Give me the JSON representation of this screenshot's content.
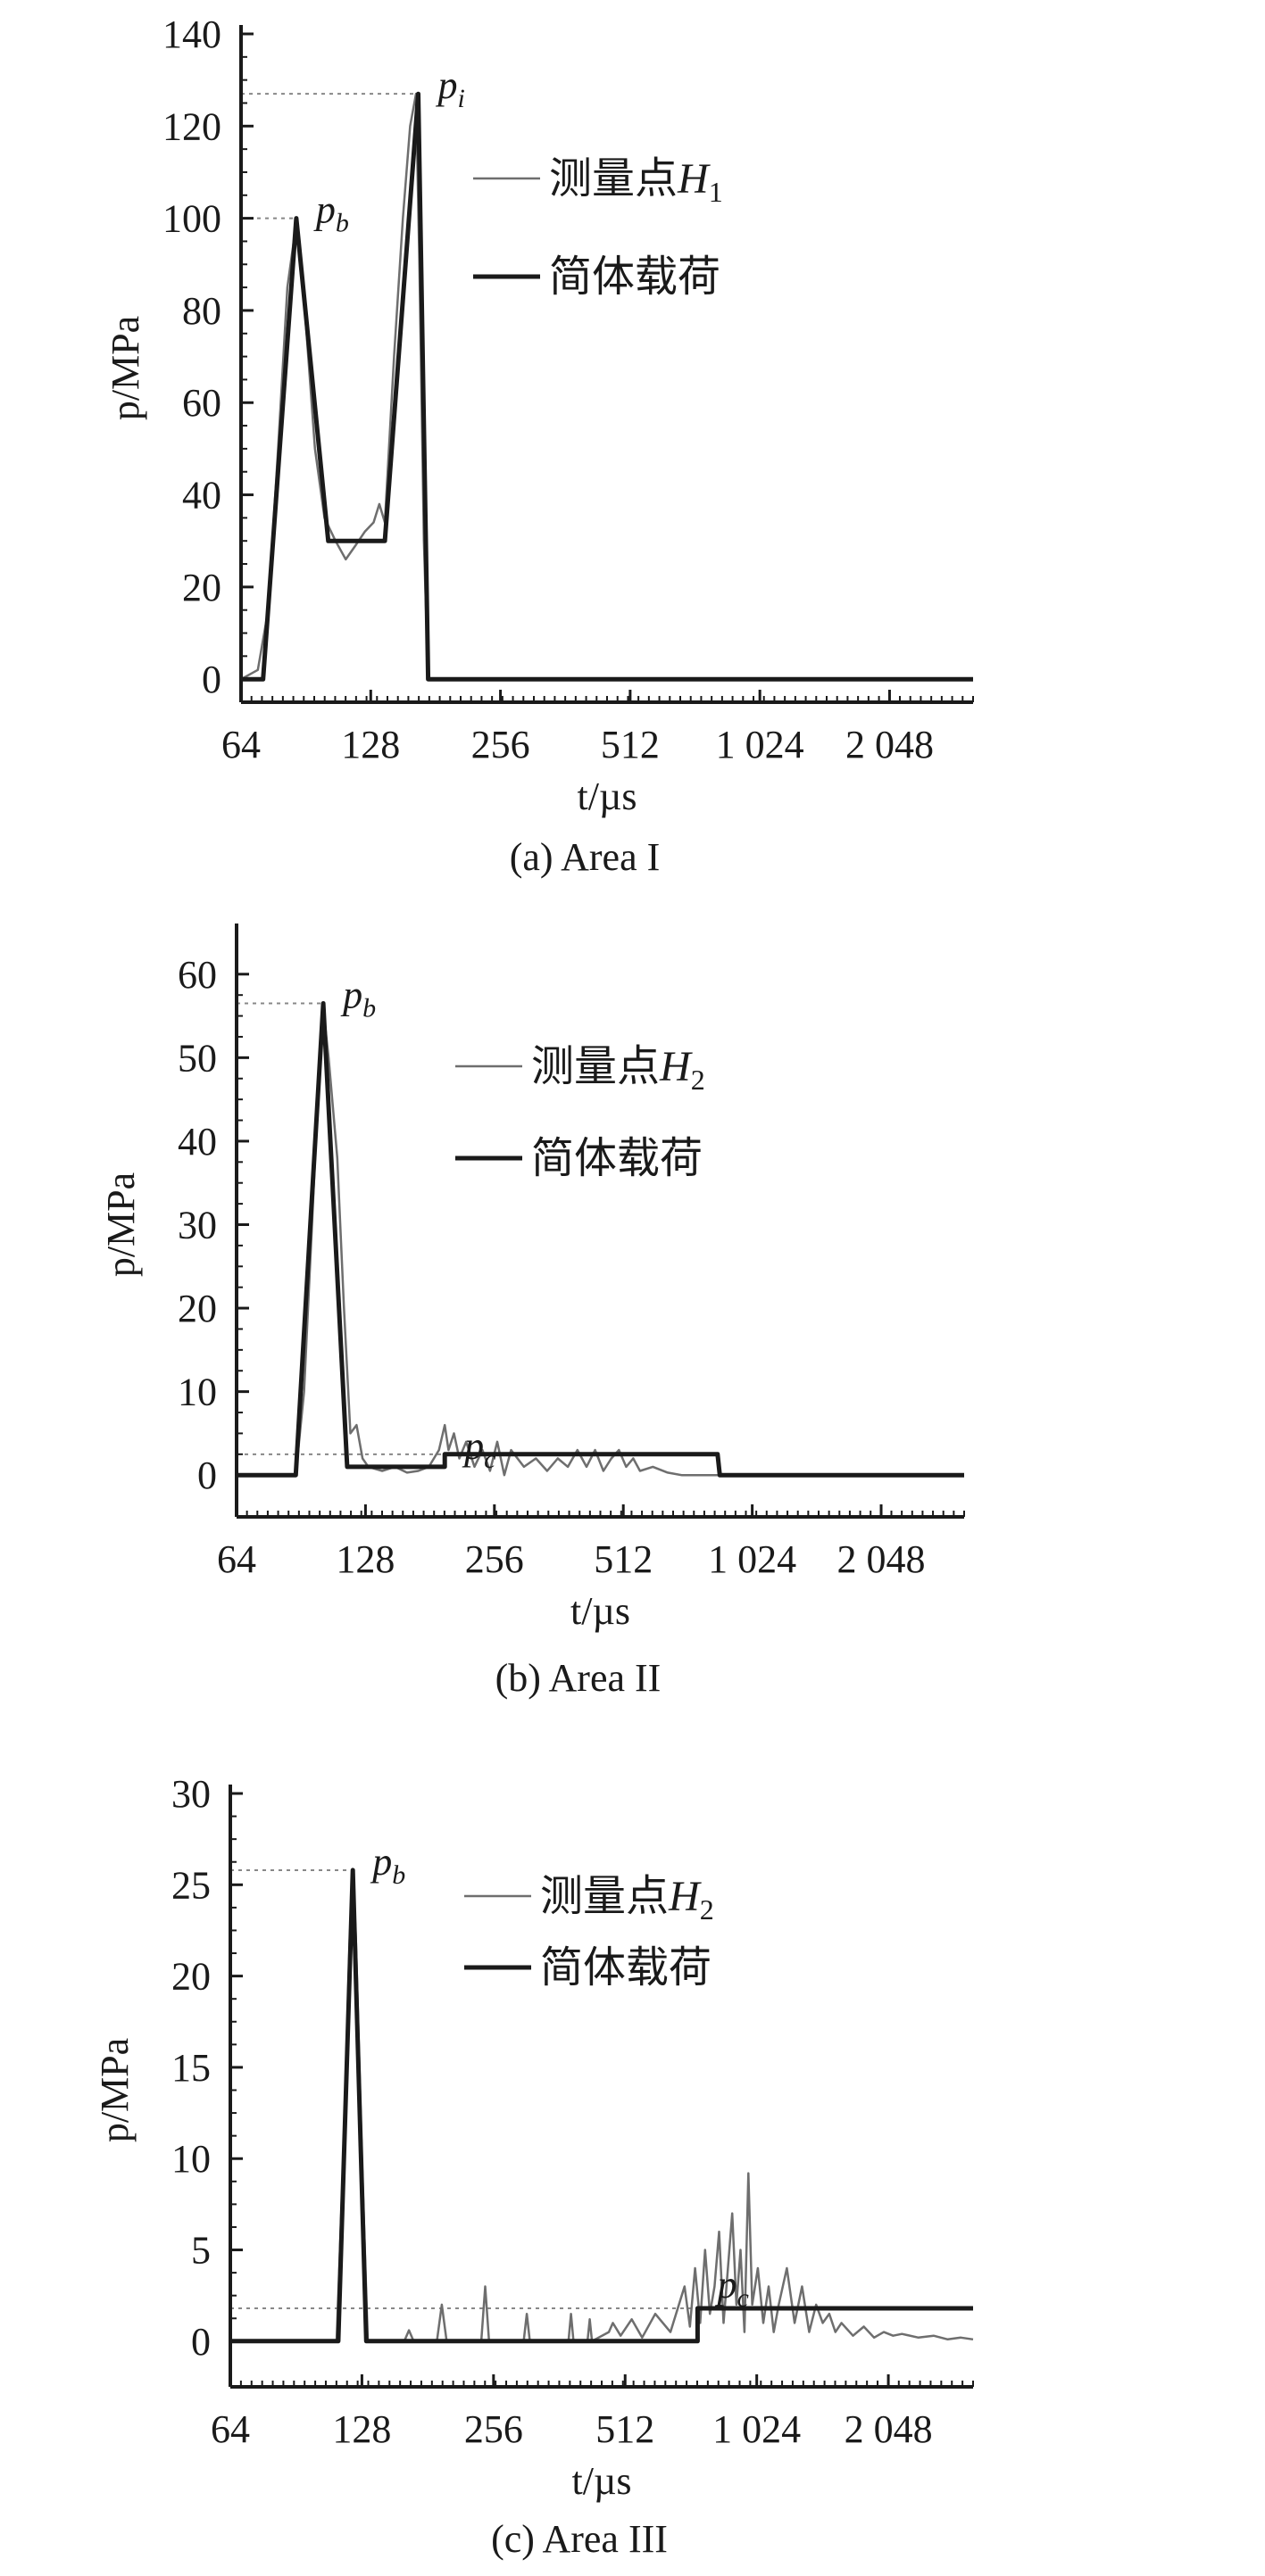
{
  "chart_data": [
    {
      "type": "line",
      "caption": "(a) Area I",
      "xlabel": "t/µs",
      "ylabel": "p/MPa",
      "x_scale": "log2",
      "xlim": [
        64,
        3200
      ],
      "xticks": [
        64,
        128,
        256,
        512,
        1024,
        2048
      ],
      "xtick_labels": [
        "64",
        "128",
        "256",
        "512",
        "1 024",
        "2 048"
      ],
      "ylim": [
        -5,
        140
      ],
      "yticks": [
        0,
        20,
        40,
        60,
        80,
        100,
        120,
        140
      ],
      "ytick_labels": [
        "0",
        "20",
        "40",
        "60",
        "80",
        "100",
        "120",
        "140"
      ],
      "legend": [
        {
          "label_main": "测量点",
          "label_var": "H",
          "label_sub": "1",
          "style": "thin",
          "color": "#6e6e6e"
        },
        {
          "label_main": "简体载荷",
          "label_var": "",
          "label_sub": "",
          "style": "thick",
          "color": "#1a1a1a"
        }
      ],
      "peaks": [
        {
          "name": "p",
          "sub": "b",
          "x": 86,
          "y": 100
        },
        {
          "name": "p",
          "sub": "i",
          "x": 165,
          "y": 127
        }
      ],
      "series": [
        {
          "name": "测量点H1",
          "style": "thin",
          "color": "#6e6e6e",
          "x": [
            64,
            70,
            74,
            78,
            82,
            86,
            90,
            95,
            100,
            106,
            112,
            118,
            124,
            130,
            134,
            138,
            145,
            152,
            158,
            163,
            166,
            170,
            174,
            178,
            3200
          ],
          "y": [
            0,
            2,
            15,
            50,
            85,
            99,
            80,
            50,
            35,
            30,
            26,
            29,
            32,
            34,
            38,
            34,
            70,
            100,
            120,
            127,
            90,
            30,
            0,
            0,
            0
          ]
        },
        {
          "name": "简体载荷",
          "style": "thick",
          "color": "#1a1a1a",
          "x": [
            64,
            72,
            86,
            102,
            138,
            165,
            174,
            3200
          ],
          "y": [
            0,
            0,
            100,
            30,
            30,
            127,
            0,
            0
          ]
        }
      ]
    },
    {
      "type": "line",
      "caption": "(b) Area II",
      "xlabel": "t/µs",
      "ylabel": "p/MPa",
      "x_scale": "log2",
      "xlim": [
        64,
        3200
      ],
      "xticks": [
        64,
        128,
        256,
        512,
        1024,
        2048
      ],
      "xtick_labels": [
        "64",
        "128",
        "256",
        "512",
        "1 024",
        "2 048"
      ],
      "ylim": [
        -5,
        65
      ],
      "yticks": [
        0,
        10,
        20,
        30,
        40,
        50,
        60
      ],
      "ytick_labels": [
        "0",
        "10",
        "20",
        "30",
        "40",
        "50",
        "60"
      ],
      "legend": [
        {
          "label_main": "测量点",
          "label_var": "H",
          "label_sub": "2",
          "style": "thin",
          "color": "#6e6e6e"
        },
        {
          "label_main": "简体载荷",
          "label_var": "",
          "label_sub": "",
          "style": "thick",
          "color": "#1a1a1a"
        }
      ],
      "peaks": [
        {
          "name": "p",
          "sub": "b",
          "x": 102,
          "y": 56.5
        },
        {
          "name": "p",
          "sub": "c",
          "x": 196,
          "y": 2.5
        }
      ],
      "series": [
        {
          "name": "测量点H2",
          "style": "thin",
          "color": "#6e6e6e",
          "x": [
            64,
            88,
            92,
            96,
            100,
            102,
            105,
            110,
            114,
            118,
            122,
            126,
            130,
            140,
            150,
            160,
            170,
            180,
            190,
            196,
            200,
            206,
            212,
            220,
            230,
            240,
            250,
            260,
            270,
            280,
            300,
            320,
            340,
            360,
            380,
            400,
            420,
            440,
            460,
            480,
            500,
            520,
            540,
            560,
            600,
            650,
            700,
            3200
          ],
          "y": [
            0,
            0,
            10,
            30,
            50,
            56,
            50,
            38,
            20,
            5,
            6,
            2,
            1,
            0.5,
            1,
            0.3,
            0.5,
            1,
            3,
            6,
            3,
            5,
            2,
            4,
            1,
            3,
            0.5,
            4,
            0,
            3,
            1,
            2,
            0.5,
            2,
            1,
            3,
            1,
            3,
            0.5,
            2,
            3,
            1,
            2,
            0.5,
            1,
            0.3,
            0,
            0
          ]
        },
        {
          "name": "简体载荷",
          "style": "thick",
          "color": "#1a1a1a",
          "x": [
            64,
            88,
            102,
            116,
            196,
            196,
            850,
            860,
            3200
          ],
          "y": [
            0,
            0,
            56.5,
            1,
            1,
            2.5,
            2.5,
            0,
            0
          ]
        }
      ]
    },
    {
      "type": "line",
      "caption": "(c) Area III",
      "xlabel": "t/µs",
      "ylabel": "p/MPa",
      "x_scale": "log2",
      "xlim": [
        64,
        3200
      ],
      "xticks": [
        64,
        128,
        256,
        512,
        1024,
        2048
      ],
      "xtick_labels": [
        "64",
        "128",
        "256",
        "512",
        "1 024",
        "2 048"
      ],
      "ylim": [
        -2.5,
        30
      ],
      "yticks": [
        0,
        5,
        10,
        15,
        20,
        25,
        30
      ],
      "ytick_labels": [
        "0",
        "5",
        "10",
        "15",
        "20",
        "25",
        "30"
      ],
      "legend": [
        {
          "label_main": "测量点",
          "label_var": "H",
          "label_sub": "2",
          "style": "thin",
          "color": "#6e6e6e"
        },
        {
          "label_main": "简体载荷",
          "label_var": "",
          "label_sub": "",
          "style": "thick",
          "color": "#1a1a1a"
        }
      ],
      "peaks": [
        {
          "name": "p",
          "sub": "b",
          "x": 122,
          "y": 25.8
        },
        {
          "name": "p",
          "sub": "c",
          "x": 750,
          "y": 1.8
        }
      ],
      "series": [
        {
          "name": "测量点H2",
          "style": "thin",
          "color": "#6e6e6e",
          "x": [
            64,
            112,
            116,
            120,
            122,
            124,
            128,
            132,
            160,
            164,
            168,
            190,
            195,
            200,
            240,
            245,
            250,
            300,
            305,
            310,
            380,
            385,
            390,
            420,
            425,
            430,
            470,
            480,
            500,
            530,
            560,
            600,
            650,
            700,
            720,
            740,
            760,
            780,
            800,
            820,
            840,
            860,
            880,
            900,
            920,
            940,
            960,
            980,
            1000,
            1030,
            1060,
            1090,
            1120,
            1150,
            1200,
            1250,
            1300,
            1350,
            1400,
            1450,
            1500,
            1550,
            1600,
            1700,
            1800,
            1900,
            2000,
            2100,
            2200,
            2400,
            2600,
            2800,
            3000,
            3200
          ],
          "y": [
            0,
            0,
            10,
            22,
            25.8,
            22,
            10,
            0,
            0,
            0.6,
            0,
            0,
            2,
            0,
            0,
            3,
            0,
            0,
            1.5,
            0,
            0,
            1.5,
            0,
            0,
            1.2,
            0,
            0.5,
            1,
            0.3,
            1.2,
            0.2,
            1.5,
            0.5,
            3,
            0.8,
            4,
            1,
            5,
            1.5,
            3,
            6,
            1,
            4,
            7,
            2,
            5,
            0.5,
            9.2,
            2,
            4,
            1,
            3,
            0.5,
            2,
            4,
            1,
            3,
            0.5,
            2,
            1,
            1.5,
            0.5,
            1,
            0.3,
            0.8,
            0.2,
            0.5,
            0.3,
            0.4,
            0.2,
            0.3,
            0.1,
            0.2,
            0.1
          ]
        },
        {
          "name": "简体载荷",
          "style": "thick",
          "color": "#1a1a1a",
          "x": [
            64,
            113,
            122,
            131,
            750,
            750,
            3200
          ],
          "y": [
            0,
            0,
            25.8,
            0,
            0,
            1.8,
            1.8
          ]
        }
      ]
    }
  ]
}
